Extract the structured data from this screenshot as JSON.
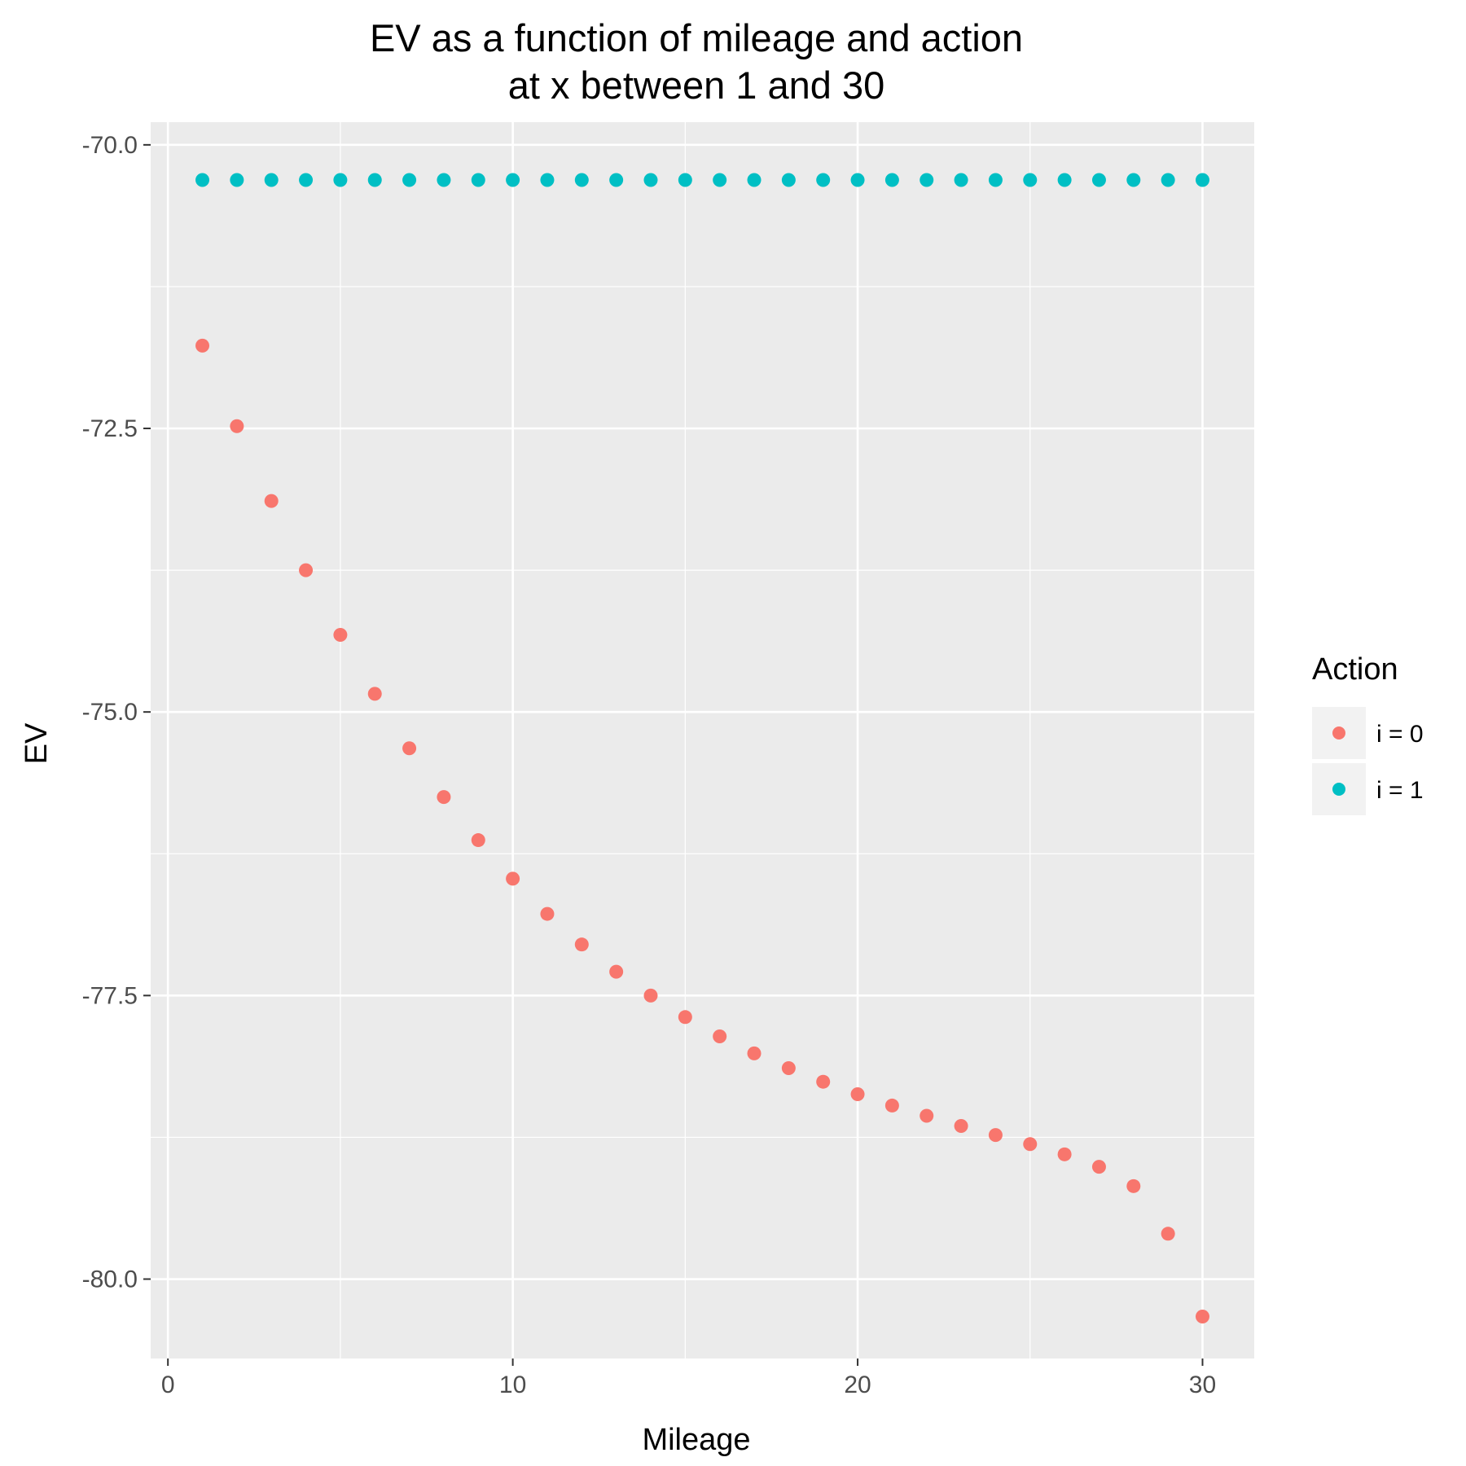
{
  "chart_data": {
    "type": "scatter",
    "title": "EV as a function of mileage and action",
    "subtitle": "at x between 1 and 30",
    "xlabel": "Mileage",
    "ylabel": "EV",
    "xlim": [
      -0.5,
      31.5
    ],
    "ylim": [
      -80.7,
      -69.8
    ],
    "x_ticks": [
      0,
      10,
      20,
      30
    ],
    "x_tick_labels": [
      "0",
      "10",
      "20",
      "30"
    ],
    "y_ticks": [
      -70.0,
      -72.5,
      -75.0,
      -77.5,
      -80.0
    ],
    "y_tick_labels": [
      "-70.0",
      "-72.5",
      "-75.0",
      "-77.5",
      "-80.0"
    ],
    "grid": true,
    "legend": {
      "title": "Action",
      "position": "right"
    },
    "x": [
      1,
      2,
      3,
      4,
      5,
      6,
      7,
      8,
      9,
      10,
      11,
      12,
      13,
      14,
      15,
      16,
      17,
      18,
      19,
      20,
      21,
      22,
      23,
      24,
      25,
      26,
      27,
      28,
      29,
      30
    ],
    "series": [
      {
        "name": "i = 0",
        "color": "#F8766D",
        "values": [
          -71.77,
          -72.48,
          -73.14,
          -73.75,
          -74.32,
          -74.84,
          -75.32,
          -75.75,
          -76.13,
          -76.47,
          -76.78,
          -77.05,
          -77.29,
          -77.5,
          -77.69,
          -77.86,
          -78.01,
          -78.14,
          -78.26,
          -78.37,
          -78.47,
          -78.56,
          -78.65,
          -78.73,
          -78.81,
          -78.9,
          -79.01,
          -79.18,
          -79.6,
          -80.33
        ]
      },
      {
        "name": "i = 1",
        "color": "#00BFC4",
        "values": [
          -70.31,
          -70.31,
          -70.31,
          -70.31,
          -70.31,
          -70.31,
          -70.31,
          -70.31,
          -70.31,
          -70.31,
          -70.31,
          -70.31,
          -70.31,
          -70.31,
          -70.31,
          -70.31,
          -70.31,
          -70.31,
          -70.31,
          -70.31,
          -70.31,
          -70.31,
          -70.31,
          -70.31,
          -70.31,
          -70.31,
          -70.31,
          -70.31,
          -70.31,
          -70.31
        ]
      }
    ]
  }
}
